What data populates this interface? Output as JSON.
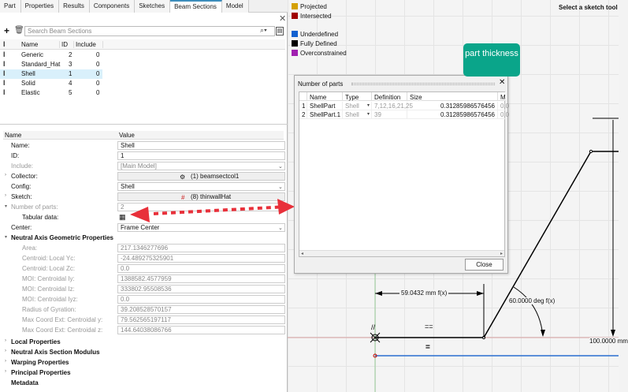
{
  "tabs": [
    "Part",
    "Properties",
    "Results",
    "Components",
    "Sketches",
    "Beam Sections",
    "Model"
  ],
  "active_tab": "Beam Sections",
  "search_placeholder": "Search Beam Sections",
  "list": {
    "headers": [
      "Name",
      "ID",
      "Include"
    ],
    "rows": [
      {
        "name": "Generic",
        "id": "2",
        "include": "0"
      },
      {
        "name": "Standard_Hat",
        "id": "3",
        "include": "0"
      },
      {
        "name": "Shell",
        "id": "1",
        "include": "0",
        "selected": true
      },
      {
        "name": "Solid",
        "id": "4",
        "include": "0"
      },
      {
        "name": "Elastic",
        "id": "5",
        "include": "0"
      }
    ]
  },
  "props": {
    "headers": [
      "Name",
      "Value"
    ],
    "name_label": "Name:",
    "name_value": "Shell",
    "id_label": "ID:",
    "id_value": "1",
    "include_label": "Include:",
    "include_value": "[Main Model]",
    "collector_label": "Collector:",
    "collector_value": "(1) beamsectcol1",
    "config_label": "Config:",
    "config_value": "Shell",
    "sketch_label": "Sketch:",
    "sketch_value": "(8) thinwallHat",
    "parts_label": "Number of parts:",
    "parts_value": "2",
    "tabular_label": "Tabular data:",
    "center_label": "Center:",
    "center_value": "Frame Center",
    "nagp_title": "Neutral Axis Geometric Properties",
    "geom": [
      {
        "label": "Area:",
        "value": "217.1346277696"
      },
      {
        "label": "Centroid: Local Yc:",
        "value": "-24.489275325901"
      },
      {
        "label": "Centroid: Local Zc:",
        "value": "0.0"
      },
      {
        "label": "MOI: Centroidal Iy:",
        "value": "1388582.4577959"
      },
      {
        "label": "MOI: Centroidal Iz:",
        "value": "333802.95508536"
      },
      {
        "label": "MOI: Centroidal Iyz:",
        "value": "0.0"
      },
      {
        "label": "Radius of Gyration:",
        "value": "39.208528570157"
      },
      {
        "label": "Max Coord Ext: Centroidal y:",
        "value": "79.562565197117"
      },
      {
        "label": "Max Coord Ext: Centroidal z:",
        "value": "144.64038086766"
      }
    ],
    "sections": [
      "Local Properties",
      "Neutral Axis Section Modulus",
      "Warping Properties",
      "Principal Properties",
      "Metadata"
    ]
  },
  "legend": [
    {
      "label": "Projected",
      "color": "#d4a000"
    },
    {
      "label": "Intersected",
      "color": "#a00000"
    },
    {
      "label": "Underdefined",
      "color": "#1060d0"
    },
    {
      "label": "Fully Defined",
      "color": "#000000"
    },
    {
      "label": "Overconstrained",
      "color": "#a020b0"
    }
  ],
  "status": "Select a sketch tool",
  "callout": "part thickness",
  "dialog": {
    "title": "Number of parts",
    "headers": [
      "Name",
      "Type",
      "Definition",
      "Size",
      "M"
    ],
    "rows": [
      {
        "n": "1",
        "name": "ShellPart",
        "type": "Shell",
        "def": "7,12,16,21,25",
        "size": "0.31285986576456",
        "m": "0.0"
      },
      {
        "n": "2",
        "name": "ShellPart.1",
        "type": "Shell",
        "def": "39",
        "size": "0.31285986576456",
        "m": "0.0"
      }
    ],
    "close": "Close"
  },
  "dims": {
    "length": "59.0432 mm",
    "angle": "60.0000 deg",
    "height": "100.0000 mm",
    "fx": "f(x)"
  }
}
